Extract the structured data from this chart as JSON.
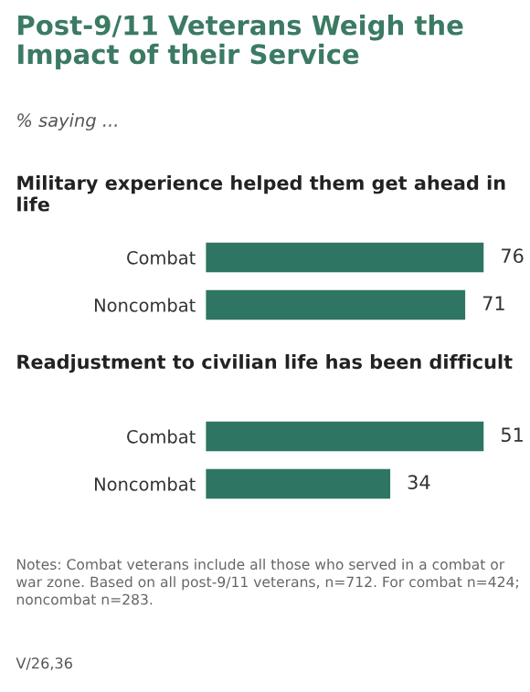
{
  "chart_data": [
    {
      "type": "bar",
      "orientation": "horizontal",
      "title": "Post-9/11 Veterans Weigh the Impact of their Service",
      "subtitle": "% saying ...",
      "annotations": [
        "Military experience helped them get ahead in life"
      ],
      "categories": [
        "Combat",
        "Noncombat"
      ],
      "values": [
        76,
        71
      ],
      "color": "#2e7563",
      "tick_labels": "y",
      "data_labels": true,
      "grid": false,
      "legend": false
    },
    {
      "type": "bar",
      "orientation": "horizontal",
      "title": "Readjustment to civilian life has been difficult",
      "annotations": [
        "Notes: Combat veterans include all those who served in a combat or war zone. Based on all post-9/11 veterans, n=712. For combat n=424; noncombat n=283.",
        "V/26,36"
      ],
      "categories": [
        "Combat",
        "Noncombat"
      ],
      "values": [
        51,
        34
      ],
      "color": "#2e7563",
      "tick_labels": "y",
      "data_labels": true,
      "grid": false,
      "legend": false
    }
  ]
}
